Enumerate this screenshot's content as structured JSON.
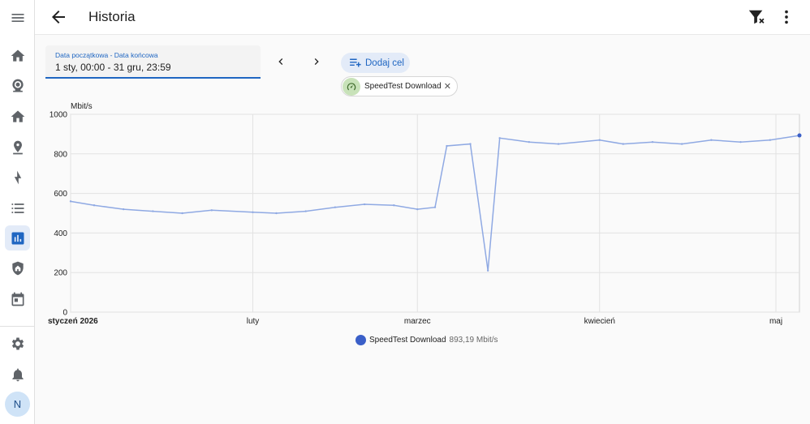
{
  "header": {
    "title": "Historia",
    "back_icon": "arrow-left-icon",
    "filter_icon": "filter-remove-icon",
    "more_icon": "dots-vertical-icon"
  },
  "sidebar": {
    "items": [
      {
        "icon": "menu-icon"
      },
      {
        "icon": "home-icon"
      },
      {
        "icon": "webcam-icon"
      },
      {
        "icon": "home-icon"
      },
      {
        "icon": "map-marker-icon"
      },
      {
        "icon": "lightning-icon"
      },
      {
        "icon": "format-list-icon"
      },
      {
        "icon": "chart-box-icon",
        "active": true
      },
      {
        "icon": "shield-home-icon"
      },
      {
        "icon": "calendar-icon"
      },
      {
        "icon": "settings-icon"
      },
      {
        "icon": "bell-icon"
      }
    ],
    "avatar": "N"
  },
  "date_picker": {
    "label": "Data początkowa - Data końcowa",
    "value": "1 sty, 00:00 - 31 gru, 23:59"
  },
  "add_target": {
    "label": "Dodaj cel"
  },
  "chip": {
    "label": "SpeedTest Download",
    "icon": "speedometer-icon"
  },
  "legend": {
    "series": "SpeedTest Download",
    "value": "893,19 Mbit/s"
  },
  "colors": {
    "accent": "#1f66c2",
    "series_light": "#8fa9e3",
    "series_dark": "#3a5fc8"
  },
  "chart_data": {
    "type": "line",
    "ylabel": "Mbit/s",
    "ylim": [
      0,
      1000
    ],
    "yticks": [
      0,
      200,
      400,
      600,
      800,
      1000
    ],
    "xlim": [
      "2026-01-01",
      "2026-05-05"
    ],
    "xticks": [
      {
        "date": "2026-01-01",
        "label": "styczeń 2026"
      },
      {
        "date": "2026-02-01",
        "label": "luty"
      },
      {
        "date": "2026-03-01",
        "label": "marzec"
      },
      {
        "date": "2026-04-01",
        "label": "kwiecień"
      },
      {
        "date": "2026-05-01",
        "label": "maj"
      }
    ],
    "grid": true,
    "series": [
      {
        "name": "SpeedTest Download",
        "x": [
          "2026-01-01",
          "2026-01-05",
          "2026-01-10",
          "2026-01-15",
          "2026-01-20",
          "2026-01-25",
          "2026-02-01",
          "2026-02-05",
          "2026-02-10",
          "2026-02-15",
          "2026-02-20",
          "2026-02-25",
          "2026-03-01",
          "2026-03-04",
          "2026-03-06",
          "2026-03-10",
          "2026-03-13",
          "2026-03-15",
          "2026-03-20",
          "2026-03-25",
          "2026-04-01",
          "2026-04-05",
          "2026-04-10",
          "2026-04-15",
          "2026-04-20",
          "2026-04-25",
          "2026-04-30",
          "2026-05-05"
        ],
        "y": [
          560,
          540,
          520,
          510,
          500,
          515,
          505,
          500,
          510,
          530,
          545,
          540,
          520,
          530,
          840,
          850,
          210,
          880,
          860,
          850,
          870,
          850,
          860,
          850,
          870,
          860,
          870,
          893.19
        ]
      }
    ]
  }
}
